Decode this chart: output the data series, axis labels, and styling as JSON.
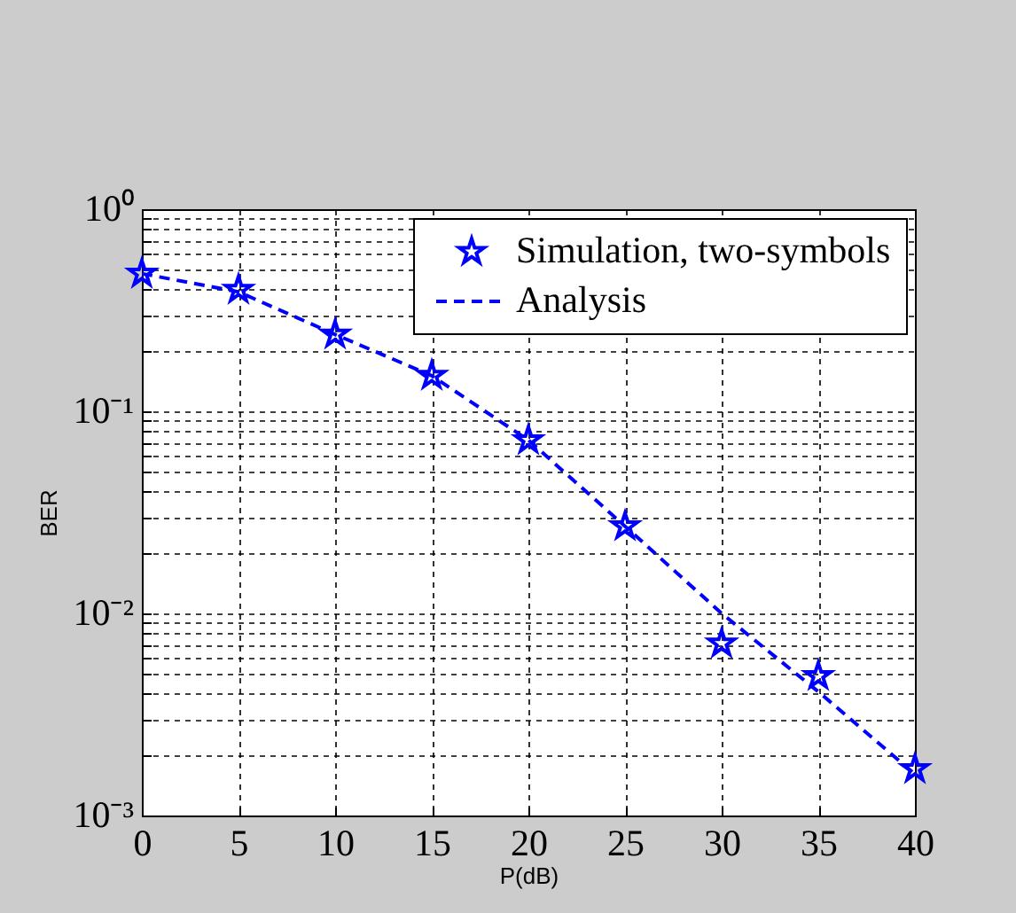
{
  "chart_data": {
    "type": "line",
    "xlabel": "P(dB)",
    "ylabel": "BER",
    "x": [
      0,
      5,
      10,
      15,
      20,
      25,
      30,
      35,
      40
    ],
    "series": [
      {
        "name": "Simulation, two-symbols",
        "type": "scatter",
        "marker": "star",
        "color": "#0000ff",
        "values": [
          0.48,
          0.4,
          0.24,
          0.15,
          0.072,
          0.027,
          0.0071,
          0.0049,
          0.0017
        ]
      },
      {
        "name": "Analysis",
        "type": "line",
        "line_style": "dashed",
        "marker": "none",
        "color": "#0000ff",
        "values": [
          0.48,
          0.39,
          0.24,
          0.15,
          0.072,
          0.027,
          0.01,
          0.0041,
          0.0016
        ]
      }
    ],
    "xlim": [
      0,
      40
    ],
    "xticks": [
      0,
      5,
      10,
      15,
      20,
      25,
      30,
      35,
      40
    ],
    "ylim": [
      0.001,
      1
    ],
    "yticks": [
      {
        "value": 0.001,
        "label": "10⁻³"
      },
      {
        "value": 0.002,
        "label": null
      },
      {
        "value": 0.003,
        "label": null
      },
      {
        "value": 0.004,
        "label": null
      },
      {
        "value": 0.005,
        "label": null
      },
      {
        "value": 0.006,
        "label": null
      },
      {
        "value": 0.007,
        "label": null
      },
      {
        "value": 0.008,
        "label": null
      },
      {
        "value": 0.009,
        "label": null
      },
      {
        "value": 0.01,
        "label": "10⁻²"
      },
      {
        "value": 0.02,
        "label": null
      },
      {
        "value": 0.03,
        "label": null
      },
      {
        "value": 0.04,
        "label": null
      },
      {
        "value": 0.05,
        "label": null
      },
      {
        "value": 0.06,
        "label": null
      },
      {
        "value": 0.07,
        "label": null
      },
      {
        "value": 0.08,
        "label": null
      },
      {
        "value": 0.09,
        "label": null
      },
      {
        "value": 0.1,
        "label": "10⁻¹"
      },
      {
        "value": 0.2,
        "label": null
      },
      {
        "value": 0.3,
        "label": null
      },
      {
        "value": 0.4,
        "label": null
      },
      {
        "value": 0.5,
        "label": null
      },
      {
        "value": 0.6,
        "label": null
      },
      {
        "value": 0.7,
        "label": null
      },
      {
        "value": 0.8,
        "label": null
      },
      {
        "value": 0.9,
        "label": null
      },
      {
        "value": 1,
        "label": "10⁰"
      }
    ],
    "log": "y",
    "grid": true,
    "legend": "top right"
  }
}
